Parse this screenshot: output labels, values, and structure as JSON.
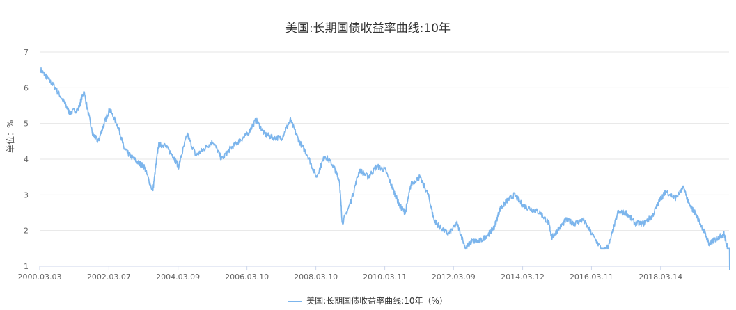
{
  "chart_data": {
    "type": "line",
    "title": "美国:长期国债收益率曲线:10年",
    "ylabel": "单位：%",
    "ylim": [
      1,
      7
    ],
    "yticks": [
      1,
      2,
      3,
      4,
      5,
      6,
      7
    ],
    "xlim": [
      "2000-03-03",
      "2020-03-09"
    ],
    "xticks": [
      "2000.03.03",
      "2002.03.07",
      "2004.03.09",
      "2006.03.10",
      "2008.03.10",
      "2010.03.11",
      "2012.03.09",
      "2014.03.12",
      "2016.03.11",
      "2018.03.14"
    ],
    "grid": true,
    "legend": "bottom-center",
    "color": "#7cb5ec",
    "series": [
      {
        "name": "美国:长期国债收益率曲线:10年（%）",
        "x": [
          "2000-03",
          "2000-05",
          "2000-08",
          "2000-11",
          "2001-01",
          "2001-04",
          "2001-06",
          "2001-09",
          "2001-11",
          "2002-01",
          "2002-03",
          "2002-06",
          "2002-08",
          "2002-10",
          "2003-01",
          "2003-03",
          "2003-06",
          "2003-08",
          "2003-10",
          "2004-01",
          "2004-03",
          "2004-06",
          "2004-09",
          "2004-12",
          "2005-03",
          "2005-06",
          "2005-09",
          "2005-12",
          "2006-03",
          "2006-06",
          "2006-09",
          "2006-12",
          "2007-03",
          "2007-06",
          "2007-09",
          "2007-12",
          "2008-03",
          "2008-06",
          "2008-09",
          "2008-11",
          "2008-12",
          "2009-03",
          "2009-06",
          "2009-09",
          "2009-12",
          "2010-03",
          "2010-06",
          "2010-08",
          "2010-10",
          "2010-12",
          "2011-03",
          "2011-06",
          "2011-08",
          "2011-10",
          "2012-01",
          "2012-04",
          "2012-07",
          "2012-09",
          "2012-12",
          "2013-03",
          "2013-05",
          "2013-07",
          "2013-09",
          "2013-12",
          "2014-03",
          "2014-06",
          "2014-09",
          "2014-12",
          "2015-01",
          "2015-03",
          "2015-06",
          "2015-09",
          "2015-12",
          "2016-03",
          "2016-07",
          "2016-09",
          "2016-12",
          "2017-03",
          "2017-06",
          "2017-09",
          "2017-12",
          "2018-03",
          "2018-05",
          "2018-08",
          "2018-11",
          "2019-01",
          "2019-03",
          "2019-06",
          "2019-08",
          "2019-09",
          "2019-11",
          "2020-01",
          "2020-02",
          "2020-03"
        ],
        "values": [
          6.5,
          6.3,
          6.0,
          5.6,
          5.3,
          5.4,
          5.9,
          4.7,
          4.5,
          5.0,
          5.4,
          4.9,
          4.3,
          4.1,
          3.9,
          3.8,
          3.1,
          4.4,
          4.4,
          4.1,
          3.8,
          4.7,
          4.1,
          4.3,
          4.5,
          4.0,
          4.3,
          4.5,
          4.7,
          5.1,
          4.7,
          4.6,
          4.6,
          5.1,
          4.5,
          4.1,
          3.5,
          4.1,
          3.8,
          3.4,
          2.2,
          2.8,
          3.7,
          3.5,
          3.8,
          3.7,
          3.1,
          2.7,
          2.5,
          3.3,
          3.5,
          3.0,
          2.3,
          2.1,
          1.9,
          2.2,
          1.5,
          1.7,
          1.7,
          1.9,
          2.1,
          2.6,
          2.8,
          3.0,
          2.7,
          2.6,
          2.5,
          2.2,
          1.8,
          2.0,
          2.3,
          2.2,
          2.3,
          1.9,
          1.4,
          1.6,
          2.5,
          2.5,
          2.2,
          2.2,
          2.4,
          2.9,
          3.1,
          2.9,
          3.2,
          2.7,
          2.5,
          2.0,
          1.6,
          1.7,
          1.8,
          1.9,
          1.6,
          0.9
        ]
      }
    ]
  },
  "legend": {
    "label": "美国:长期国债收益率曲线:10年（%）"
  }
}
